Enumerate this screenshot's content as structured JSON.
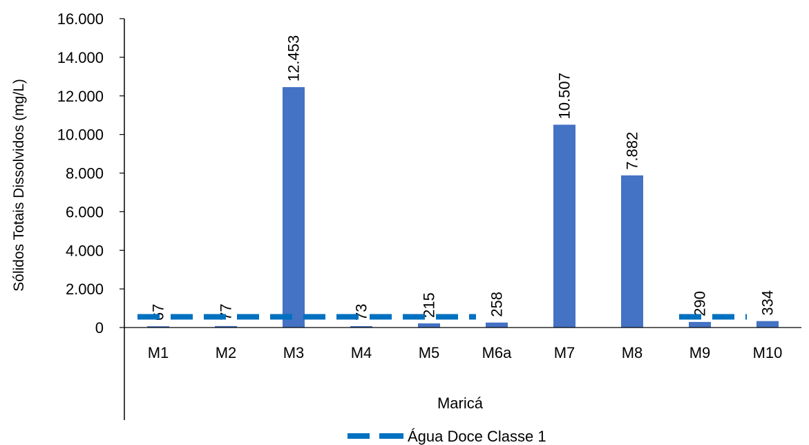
{
  "chart_data": {
    "type": "bar",
    "title": "",
    "xlabel": "Maricá",
    "ylabel": "Sólidos Totais Dissolvidos (mg/L)",
    "ylim": [
      0,
      16000
    ],
    "yticks": [
      0,
      2000,
      4000,
      6000,
      8000,
      10000,
      12000,
      14000,
      16000
    ],
    "ytick_labels": [
      "0",
      "2.000",
      "4.000",
      "6.000",
      "8.000",
      "10.000",
      "12.000",
      "14.000",
      "16.000"
    ],
    "categories": [
      "M1",
      "M2",
      "M3",
      "M4",
      "M5",
      "M6a",
      "M7",
      "M8",
      "M9",
      "M10"
    ],
    "values": [
      67,
      77,
      12453,
      73,
      215,
      258,
      10507,
      7882,
      290,
      334
    ],
    "data_labels": [
      "67",
      "77",
      "12.453",
      "73",
      "215",
      "258",
      "10.507",
      "7.882",
      "290",
      "334"
    ],
    "bar_color": "#4472C4",
    "reference_line": {
      "name": "Água Doce Classe 1",
      "value": 500,
      "color": "#0070C0",
      "style": "dashed",
      "segments": [
        [
          "M1",
          "M6a"
        ],
        [
          "M9",
          "M10"
        ]
      ]
    },
    "grid": false,
    "legend_position": "bottom"
  }
}
